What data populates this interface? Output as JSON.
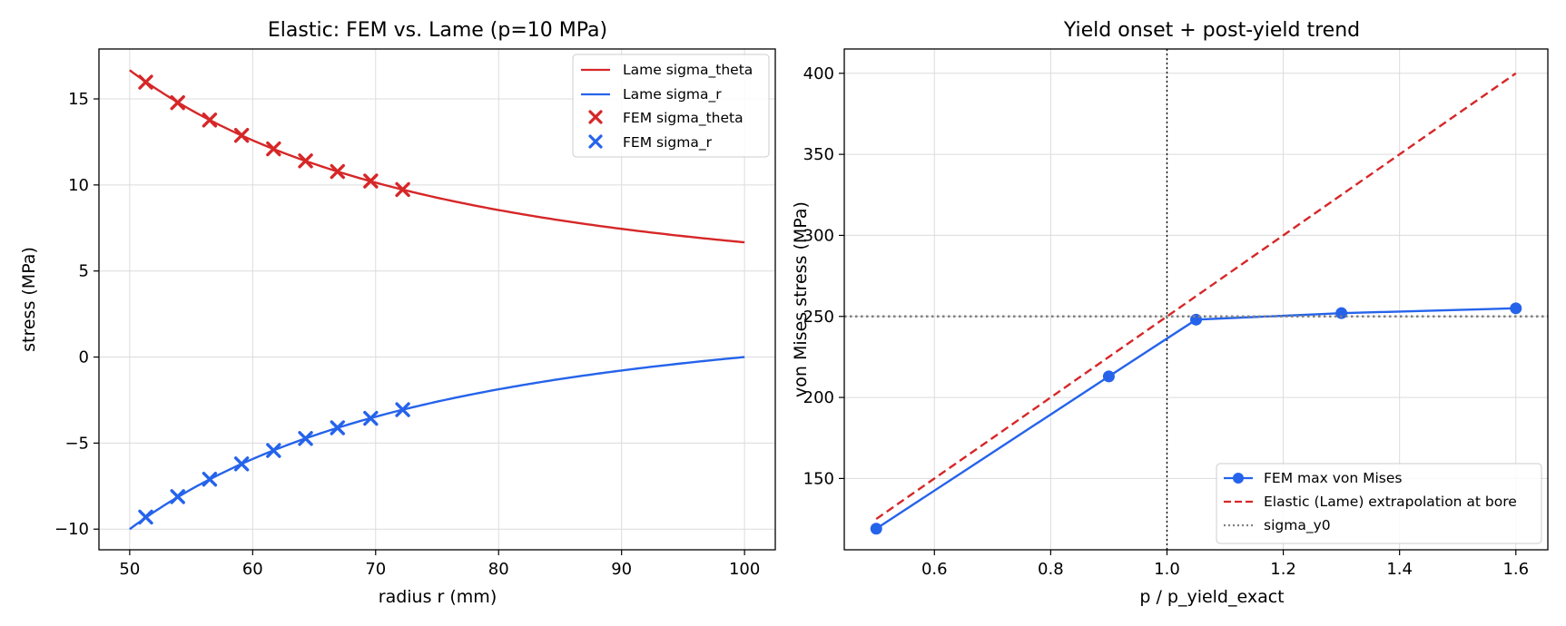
{
  "chart_data": [
    {
      "type": "line",
      "title": "Elastic: FEM vs. Lame (p=10 MPa)",
      "xlabel": "radius r (mm)",
      "ylabel": "stress (MPa)",
      "xlim": [
        47.5,
        102.5
      ],
      "ylim": [
        -11.2,
        17.9
      ],
      "xticks": [
        50,
        60,
        70,
        80,
        90,
        100
      ],
      "yticks": [
        -10,
        -5,
        0,
        5,
        10,
        15
      ],
      "ytick_labels": [
        "−10",
        "−5",
        "0",
        "5",
        "10",
        "15"
      ],
      "grid": true,
      "legend_position": "top-right",
      "lame": {
        "a": 50,
        "b": 100,
        "p": 10
      },
      "series": [
        {
          "name": "Lame sigma_theta",
          "kind": "line",
          "color": "#d62728",
          "x": [
            50,
            52.5,
            55,
            57.5,
            60,
            62.5,
            65,
            67.5,
            70,
            72.5,
            75,
            77.5,
            80,
            82.5,
            85,
            87.5,
            90,
            92.5,
            95,
            97.5,
            100
          ],
          "y": [
            16.67,
            15.43,
            14.35,
            13.41,
            12.59,
            11.87,
            11.22,
            10.65,
            10.14,
            9.67,
            9.26,
            8.88,
            8.54,
            8.23,
            7.95,
            7.69,
            7.45,
            7.23,
            7.03,
            6.84,
            6.67
          ]
        },
        {
          "name": "Lame sigma_r",
          "kind": "line",
          "color": "#2563eb",
          "x": [
            50,
            52.5,
            55,
            57.5,
            60,
            62.5,
            65,
            67.5,
            70,
            72.5,
            75,
            77.5,
            80,
            82.5,
            85,
            87.5,
            90,
            92.5,
            95,
            97.5,
            100
          ],
          "y": [
            -10.0,
            -8.76,
            -7.68,
            -6.75,
            -5.93,
            -5.2,
            -4.56,
            -3.98,
            -3.47,
            -3.01,
            -2.59,
            -2.22,
            -1.88,
            -1.56,
            -1.28,
            -1.02,
            -0.78,
            -0.56,
            -0.36,
            -0.18,
            0.0
          ]
        },
        {
          "name": "FEM sigma_theta",
          "kind": "marker-x",
          "color": "#d62728",
          "x": [
            51.3,
            53.9,
            56.5,
            59.1,
            61.7,
            64.3,
            66.9,
            69.6,
            72.2
          ],
          "y": [
            15.97,
            14.78,
            13.77,
            12.88,
            12.1,
            11.4,
            10.78,
            10.23,
            9.73
          ]
        },
        {
          "name": "FEM sigma_r",
          "kind": "marker-x",
          "color": "#2563eb",
          "x": [
            51.3,
            53.9,
            56.5,
            59.1,
            61.7,
            64.3,
            66.9,
            69.6,
            72.2
          ],
          "y": [
            -9.3,
            -8.11,
            -7.1,
            -6.21,
            -5.43,
            -4.73,
            -4.11,
            -3.56,
            -3.06
          ]
        }
      ]
    },
    {
      "type": "line",
      "title": "Yield onset + post-yield trend",
      "xlabel": "p / p_yield_exact",
      "ylabel": "von Mises stress (MPa)",
      "xlim": [
        0.445,
        1.655
      ],
      "ylim": [
        106,
        415
      ],
      "xticks": [
        0.6,
        0.8,
        1.0,
        1.2,
        1.4,
        1.6
      ],
      "xtick_labels": [
        "0.6",
        "0.8",
        "1.0",
        "1.2",
        "1.4",
        "1.6"
      ],
      "yticks": [
        150,
        200,
        250,
        300,
        350,
        400
      ],
      "grid": true,
      "legend_position": "lower-right",
      "vline_x": 1.0,
      "series": [
        {
          "name": "FEM max von Mises",
          "kind": "line-marker",
          "color": "#2563eb",
          "x": [
            0.5,
            0.9,
            1.05,
            1.3,
            1.6
          ],
          "y": [
            119,
            213,
            248,
            252,
            255
          ]
        },
        {
          "name": "Elastic (Lame) extrapolation at bore",
          "kind": "dashed",
          "color": "#d62728",
          "x": [
            0.5,
            1.6
          ],
          "y": [
            125,
            400
          ]
        },
        {
          "name": "sigma_y0",
          "kind": "dotted",
          "color": "#808080",
          "x": [
            0.445,
            1.655
          ],
          "y": [
            250,
            250
          ]
        }
      ]
    }
  ]
}
